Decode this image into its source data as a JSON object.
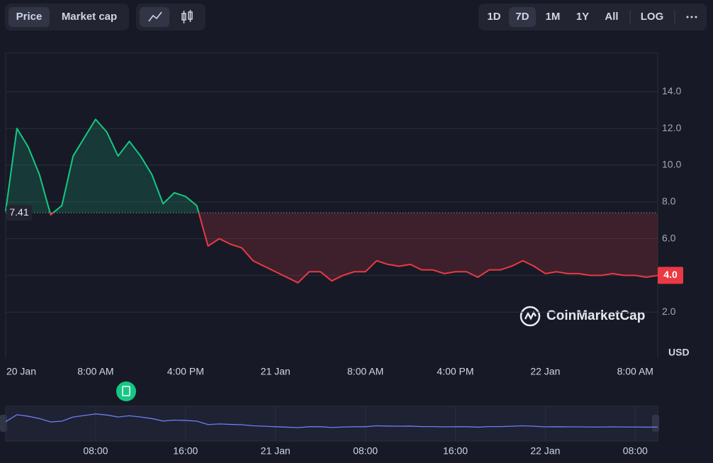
{
  "toolbar": {
    "metrics": [
      "Price",
      "Market cap"
    ],
    "ranges": [
      "1D",
      "7D",
      "1M",
      "1Y",
      "All"
    ],
    "scale": "LOG"
  },
  "chart_data": {
    "type": "line",
    "categories": [
      "20 Jan",
      null,
      null,
      null,
      null,
      null,
      null,
      null,
      "8:00 AM",
      null,
      null,
      null,
      null,
      null,
      null,
      null,
      "4:00 PM",
      null,
      null,
      null,
      null,
      null,
      null,
      null,
      "21 Jan",
      null,
      null,
      null,
      null,
      null,
      null,
      null,
      "8:00 AM",
      null,
      null,
      null,
      null,
      null,
      null,
      null,
      "4:00 PM",
      null,
      null,
      null,
      null,
      null,
      null,
      null,
      "22 Jan",
      null,
      null,
      null,
      null,
      null,
      null,
      null,
      "8:00 AM",
      null,
      null
    ],
    "values": [
      7.5,
      12.0,
      11.0,
      9.5,
      7.3,
      7.8,
      10.5,
      11.5,
      12.5,
      11.8,
      10.5,
      11.3,
      10.5,
      9.5,
      7.9,
      8.5,
      8.3,
      7.8,
      5.6,
      6.0,
      5.7,
      5.5,
      4.8,
      4.5,
      4.2,
      3.9,
      3.6,
      4.2,
      4.2,
      3.7,
      4.0,
      4.2,
      4.2,
      4.8,
      4.6,
      4.5,
      4.6,
      4.3,
      4.3,
      4.1,
      4.2,
      4.2,
      3.9,
      4.3,
      4.3,
      4.5,
      4.8,
      4.5,
      4.1,
      4.2,
      4.1,
      4.1,
      4.0,
      4.0,
      4.1,
      4.0,
      4.0,
      3.9,
      4.0
    ],
    "color_up": "#16c784",
    "color_down": "#ea3943",
    "baseline": 7.41,
    "last_value": {
      "value": 4.0,
      "label": "4.0"
    },
    "ylim": [
      -0.5,
      16.1
    ],
    "yticks": [
      {
        "value": 2,
        "label": "2.0"
      },
      {
        "value": 4,
        "label": "4.0"
      },
      {
        "value": 6,
        "label": "6.0"
      },
      {
        "value": 8,
        "label": "8.0"
      },
      {
        "value": 10,
        "label": "10.0"
      },
      {
        "value": 12,
        "label": "12.0"
      },
      {
        "value": 14,
        "label": "14.0"
      }
    ],
    "grid": true,
    "unit": "USD",
    "watermark": "CoinMarketCap",
    "navigator_labels": [
      "08:00",
      "16:00",
      "21 Jan",
      "08:00",
      "16:00",
      "22 Jan",
      "08:00"
    ]
  }
}
